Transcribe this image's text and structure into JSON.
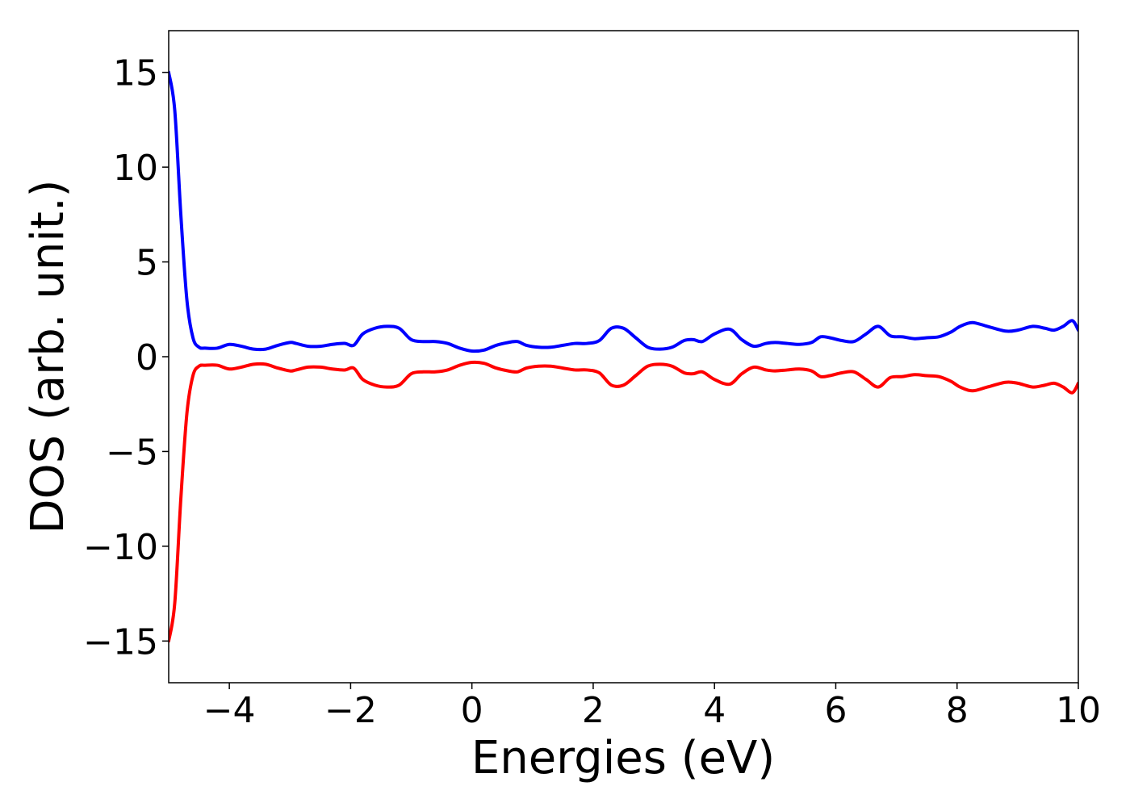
{
  "chart_data": {
    "type": "line",
    "title": "",
    "xlabel": "Energies (eV)",
    "ylabel": "DOS (arb. unit.)",
    "xlim": [
      -5,
      10
    ],
    "ylim": [
      -17.2,
      17.2
    ],
    "xticks": [
      -4,
      -2,
      0,
      2,
      4,
      6,
      8,
      10
    ],
    "xtick_labels": [
      "−4",
      "−2",
      "0",
      "2",
      "4",
      "6",
      "8",
      "10"
    ],
    "yticks": [
      -15,
      -10,
      -5,
      0,
      5,
      10,
      15
    ],
    "ytick_labels": [
      "−15",
      "−10",
      "−5",
      "0",
      "5",
      "10",
      "15"
    ],
    "grid": false,
    "legend": "none",
    "series": [
      {
        "color": "#0000ff",
        "x": [
          -5.0,
          -4.9,
          -4.8,
          -4.7,
          -4.6,
          -4.5,
          -4.4,
          -4.2,
          -4.0,
          -3.8,
          -3.6,
          -3.4,
          -3.2,
          -3.0,
          -2.9,
          -2.7,
          -2.5,
          -2.3,
          -2.1,
          -1.95,
          -1.8,
          -1.6,
          -1.4,
          -1.2,
          -1.0,
          -0.8,
          -0.6,
          -0.4,
          -0.2,
          0.0,
          0.2,
          0.4,
          0.6,
          0.75,
          0.9,
          1.1,
          1.3,
          1.5,
          1.7,
          1.9,
          2.1,
          2.3,
          2.5,
          2.7,
          2.9,
          3.1,
          3.3,
          3.5,
          3.65,
          3.8,
          4.0,
          4.25,
          4.45,
          4.65,
          4.85,
          5.0,
          5.2,
          5.4,
          5.6,
          5.75,
          5.9,
          6.1,
          6.3,
          6.5,
          6.7,
          6.9,
          7.1,
          7.3,
          7.5,
          7.7,
          7.9,
          8.05,
          8.25,
          8.5,
          8.8,
          9.0,
          9.25,
          9.45,
          9.6,
          9.75,
          9.9,
          10.0
        ],
        "y": [
          15.0,
          13.0,
          7.5,
          3.0,
          1.0,
          0.5,
          0.45,
          0.45,
          0.65,
          0.55,
          0.4,
          0.4,
          0.6,
          0.75,
          0.7,
          0.55,
          0.55,
          0.65,
          0.7,
          0.6,
          1.2,
          1.5,
          1.6,
          1.5,
          0.9,
          0.8,
          0.8,
          0.7,
          0.45,
          0.3,
          0.35,
          0.6,
          0.75,
          0.8,
          0.6,
          0.5,
          0.5,
          0.6,
          0.7,
          0.7,
          0.85,
          1.5,
          1.5,
          1.0,
          0.5,
          0.4,
          0.5,
          0.85,
          0.9,
          0.8,
          1.2,
          1.45,
          0.9,
          0.55,
          0.7,
          0.75,
          0.7,
          0.65,
          0.75,
          1.05,
          1.0,
          0.85,
          0.8,
          1.2,
          1.6,
          1.1,
          1.05,
          0.95,
          1.0,
          1.05,
          1.3,
          1.6,
          1.8,
          1.6,
          1.35,
          1.4,
          1.6,
          1.5,
          1.4,
          1.6,
          1.9,
          1.4
        ]
      },
      {
        "color": "#ff0000",
        "x": [
          -5.0,
          -4.9,
          -4.8,
          -4.7,
          -4.6,
          -4.5,
          -4.4,
          -4.2,
          -4.0,
          -3.8,
          -3.6,
          -3.4,
          -3.2,
          -3.0,
          -2.9,
          -2.7,
          -2.5,
          -2.3,
          -2.1,
          -1.95,
          -1.8,
          -1.6,
          -1.4,
          -1.2,
          -1.0,
          -0.8,
          -0.6,
          -0.4,
          -0.2,
          0.0,
          0.2,
          0.4,
          0.6,
          0.75,
          0.9,
          1.1,
          1.3,
          1.5,
          1.7,
          1.9,
          2.1,
          2.3,
          2.5,
          2.7,
          2.9,
          3.1,
          3.3,
          3.5,
          3.65,
          3.8,
          4.0,
          4.25,
          4.45,
          4.65,
          4.85,
          5.0,
          5.2,
          5.4,
          5.6,
          5.75,
          5.9,
          6.1,
          6.3,
          6.5,
          6.7,
          6.9,
          7.1,
          7.3,
          7.5,
          7.7,
          7.9,
          8.05,
          8.25,
          8.5,
          8.8,
          9.0,
          9.25,
          9.45,
          9.6,
          9.75,
          9.9,
          10.0
        ],
        "y": [
          -15.0,
          -13.0,
          -7.5,
          -3.0,
          -1.0,
          -0.5,
          -0.45,
          -0.45,
          -0.65,
          -0.55,
          -0.4,
          -0.4,
          -0.6,
          -0.75,
          -0.7,
          -0.55,
          -0.55,
          -0.65,
          -0.7,
          -0.6,
          -1.2,
          -1.5,
          -1.6,
          -1.5,
          -0.9,
          -0.8,
          -0.8,
          -0.7,
          -0.45,
          -0.3,
          -0.35,
          -0.6,
          -0.75,
          -0.8,
          -0.6,
          -0.5,
          -0.5,
          -0.6,
          -0.7,
          -0.7,
          -0.85,
          -1.5,
          -1.5,
          -1.0,
          -0.5,
          -0.4,
          -0.5,
          -0.85,
          -0.9,
          -0.8,
          -1.2,
          -1.45,
          -0.9,
          -0.55,
          -0.7,
          -0.75,
          -0.7,
          -0.65,
          -0.75,
          -1.05,
          -1.0,
          -0.85,
          -0.8,
          -1.2,
          -1.6,
          -1.1,
          -1.05,
          -0.95,
          -1.0,
          -1.05,
          -1.3,
          -1.6,
          -1.8,
          -1.6,
          -1.35,
          -1.4,
          -1.6,
          -1.5,
          -1.4,
          -1.6,
          -1.9,
          -1.4
        ]
      }
    ]
  }
}
